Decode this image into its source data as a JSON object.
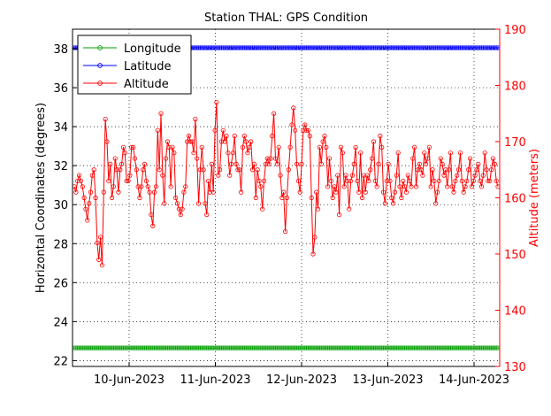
{
  "chart_data": {
    "type": "line",
    "title": "Station THAL: GPS Condition",
    "ylabel": "Horizontal Coordinates (degrees)",
    "y2label": "Altitude (meters)",
    "ylim": [
      21.7,
      39
    ],
    "y2lim": [
      130,
      190
    ],
    "yticks": [
      22,
      24,
      26,
      28,
      30,
      32,
      34,
      36,
      38
    ],
    "y2ticks": [
      130,
      140,
      150,
      160,
      170,
      180,
      190
    ],
    "xticks": [
      "10-Jun-2023",
      "11-Jun-2023",
      "12-Jun-2023",
      "13-Jun-2023",
      "14-Jun-2023"
    ],
    "grid": true,
    "legend_position": "top-left",
    "colors": {
      "longitude": "#00a000",
      "latitude": "#0000ff",
      "altitude": "#ff0000",
      "left_axis": "#000000",
      "right_axis": "#ff0000"
    },
    "series": [
      {
        "name": "Longitude",
        "axis": "left",
        "constant": 22.65
      },
      {
        "name": "Latitude",
        "axis": "left",
        "constant": 38.05
      },
      {
        "name": "Altitude",
        "axis": "right",
        "values": [
          162,
          161,
          163,
          164,
          163,
          162,
          160,
          158,
          156,
          159,
          161,
          164,
          165,
          160,
          152,
          149,
          153,
          148,
          161,
          174,
          170,
          163,
          166,
          160,
          162,
          167,
          165,
          161,
          165,
          166,
          169,
          168,
          163,
          163,
          164,
          169,
          169,
          167,
          165,
          162,
          160,
          162,
          165,
          166,
          163,
          162,
          161,
          157,
          155,
          161,
          162,
          172,
          165,
          175,
          164,
          159,
          167,
          170,
          169,
          162,
          169,
          168,
          160,
          159,
          158,
          157,
          158,
          161,
          162,
          170,
          171,
          170,
          170,
          168,
          174,
          167,
          159,
          165,
          169,
          165,
          159,
          157,
          163,
          161,
          166,
          161,
          172,
          177,
          164,
          165,
          170,
          172,
          170,
          171,
          168,
          164,
          166,
          168,
          171,
          166,
          165,
          165,
          161,
          169,
          171,
          170,
          168,
          169,
          170,
          165,
          166,
          160,
          165,
          163,
          162,
          158,
          163,
          166,
          167,
          166,
          167,
          171,
          175,
          167,
          166,
          169,
          164,
          160,
          161,
          154,
          160,
          165,
          169,
          173,
          176,
          172,
          166,
          163,
          161,
          166,
          172,
          173,
          172,
          172,
          171,
          160,
          150,
          153,
          161,
          158,
          169,
          166,
          170,
          171,
          169,
          162,
          167,
          163,
          160,
          162,
          161,
          164,
          157,
          169,
          168,
          162,
          164,
          163,
          158,
          163,
          164,
          166,
          169,
          163,
          161,
          168,
          160,
          164,
          161,
          164,
          163,
          165,
          167,
          170,
          163,
          162,
          166,
          171,
          169,
          161,
          159,
          163,
          166,
          163,
          160,
          159,
          161,
          164,
          168,
          162,
          160,
          163,
          162,
          161,
          164,
          163,
          162,
          167,
          169,
          162,
          165,
          166,
          165,
          164,
          168,
          166,
          167,
          169,
          162,
          165,
          163,
          159,
          161,
          163,
          167,
          166,
          164,
          165,
          162,
          165,
          168,
          162,
          161,
          163,
          164,
          165,
          168,
          163,
          161,
          162,
          163,
          165,
          167,
          162,
          163,
          164,
          165,
          166,
          163,
          162,
          164,
          168,
          165,
          163,
          163,
          165,
          167,
          166,
          163,
          162
        ]
      }
    ]
  }
}
